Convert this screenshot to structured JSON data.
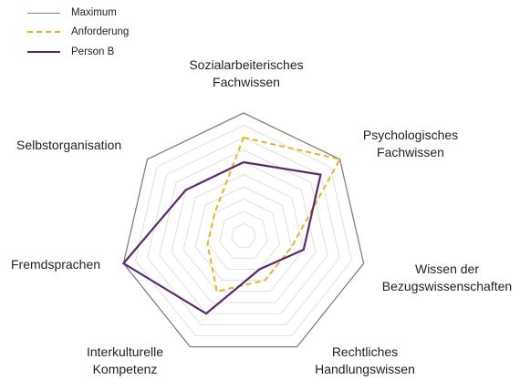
{
  "chart_data": {
    "type": "radar",
    "axes": [
      "Sozialarbeiterisches Fachwissen",
      "Psychologisches Fachwissen",
      "Wissen der Bezugswissenschaften",
      "Rechtliches Handlungswissen",
      "Interkulturelle Kompetenz",
      "Fremdsprachen",
      "Selbstorganisation"
    ],
    "axis_labels": [
      [
        "Sozialarbeiterisches",
        "Fachwissen"
      ],
      [
        "Psychologisches",
        "Fachwissen"
      ],
      [
        "Wissen der",
        "Bezugswissenschaften"
      ],
      [
        "Rechtliches",
        "Handlungswissen"
      ],
      [
        "Interkulturelle",
        "Kompetenz"
      ],
      [
        "Fremdsprachen"
      ],
      [
        "Selbstorganisation"
      ]
    ],
    "range": [
      0,
      10
    ],
    "rings": 10,
    "series": [
      {
        "name": "Maximum",
        "values": [
          10,
          10,
          10,
          10,
          10,
          10,
          10
        ],
        "color": "#808080",
        "style": "solid"
      },
      {
        "name": "Anforderung",
        "values": [
          8,
          10,
          4,
          4,
          5,
          3,
          3
        ],
        "color": "#e6b422",
        "style": "dashed"
      },
      {
        "name": "Person B",
        "values": [
          6,
          8,
          5,
          3,
          7,
          10,
          6
        ],
        "color": "#5b2a6e",
        "style": "solid"
      }
    ]
  }
}
